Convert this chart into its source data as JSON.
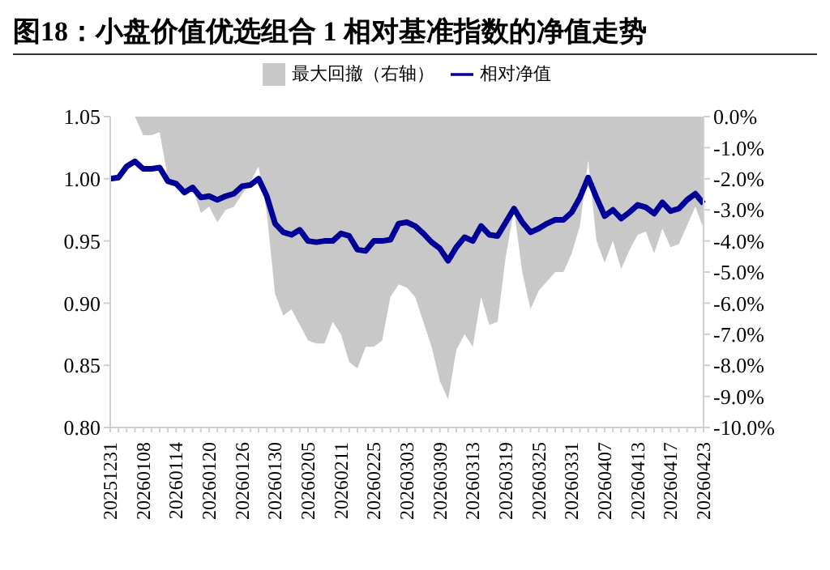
{
  "chart_data": {
    "type": "line",
    "title": "图18：小盘价值优选组合 1 相对基准指数的净值走势",
    "categories": [
      "20251231",
      null,
      null,
      null,
      "20260108",
      null,
      null,
      null,
      "20260114",
      null,
      null,
      null,
      "20260120",
      null,
      null,
      null,
      "20260126",
      null,
      null,
      null,
      "20260130",
      null,
      null,
      null,
      "20260205",
      null,
      null,
      null,
      "20260211",
      null,
      null,
      null,
      "20260225",
      null,
      null,
      null,
      "20260303",
      null,
      null,
      null,
      "20260309",
      null,
      null,
      null,
      "20260313",
      null,
      null,
      null,
      "20260319",
      null,
      null,
      null,
      "20260325",
      null,
      null,
      null,
      "20260331",
      null,
      null,
      null,
      "20260407",
      null,
      null,
      null,
      "20260413",
      null,
      null,
      null,
      "20260417",
      null,
      null,
      null,
      "20260423"
    ],
    "series": [
      {
        "name": "最大回撤（右轴）",
        "type": "area",
        "axis": "y2",
        "color": "#c8c8c8",
        "values": [
          0,
          0,
          0,
          0,
          -0.6,
          -0.6,
          -0.5,
          -2.0,
          -2.1,
          -2.5,
          -2.3,
          -3.1,
          -2.9,
          -3.4,
          -3.0,
          -2.9,
          -2.5,
          -2.1,
          -1.6,
          -3.1,
          -5.7,
          -6.4,
          -6.2,
          -6.7,
          -7.2,
          -7.3,
          -7.3,
          -6.6,
          -7.0,
          -7.9,
          -8.1,
          -7.4,
          -7.4,
          -7.2,
          -5.8,
          -5.4,
          -5.5,
          -5.8,
          -6.6,
          -7.4,
          -8.5,
          -9.1,
          -7.5,
          -7.0,
          -7.4,
          -5.8,
          -6.7,
          -6.6,
          -4.5,
          -3.0,
          -5.0,
          -6.2,
          -5.6,
          -5.3,
          -5.0,
          -5.0,
          -4.4,
          -3.5,
          -1.4,
          -4.0,
          -4.7,
          -4.0,
          -4.9,
          -4.3,
          -3.8,
          -3.7,
          -4.4,
          -3.6,
          -4.2,
          -4.1,
          -3.5,
          -2.9,
          -3.6
        ]
      },
      {
        "name": "相对净值",
        "color": "#000099",
        "values": [
          1.0,
          1.001,
          1.01,
          1.014,
          1.008,
          1.008,
          1.009,
          0.998,
          0.996,
          0.989,
          0.993,
          0.985,
          0.986,
          0.983,
          0.986,
          0.988,
          0.994,
          0.995,
          1.0,
          0.986,
          0.964,
          0.957,
          0.955,
          0.959,
          0.95,
          0.949,
          0.95,
          0.95,
          0.956,
          0.954,
          0.943,
          0.942,
          0.95,
          0.95,
          0.951,
          0.964,
          0.965,
          0.962,
          0.956,
          0.949,
          0.944,
          0.934,
          0.945,
          0.953,
          0.95,
          0.962,
          0.955,
          0.954,
          0.965,
          0.976,
          0.965,
          0.957,
          0.96,
          0.964,
          0.967,
          0.967,
          0.973,
          0.985,
          1.001,
          0.985,
          0.97,
          0.975,
          0.968,
          0.973,
          0.979,
          0.977,
          0.972,
          0.981,
          0.974,
          0.976,
          0.983,
          0.988,
          0.98
        ]
      }
    ],
    "ylim": [
      0.8,
      1.05
    ],
    "yticks": [
      {
        "value": 0.8,
        "label": "0.80"
      },
      {
        "value": 0.85,
        "label": "0.85"
      },
      {
        "value": 0.9,
        "label": "0.90"
      },
      {
        "value": 0.95,
        "label": "0.95"
      },
      {
        "value": 1.0,
        "label": "1.00"
      },
      {
        "value": 1.05,
        "label": "1.05"
      }
    ],
    "y2lim": [
      -10,
      0
    ],
    "y2ticks": [
      {
        "value": 0,
        "label": "0.0%"
      },
      {
        "value": -1,
        "label": "-1.0%"
      },
      {
        "value": -2,
        "label": "-2.0%"
      },
      {
        "value": -3,
        "label": "-3.0%"
      },
      {
        "value": -4,
        "label": "-4.0%"
      },
      {
        "value": -5,
        "label": "-5.0%"
      },
      {
        "value": -6,
        "label": "-6.0%"
      },
      {
        "value": -7,
        "label": "-7.0%"
      },
      {
        "value": -8,
        "label": "-8.0%"
      },
      {
        "value": -9,
        "label": "-9.0%"
      },
      {
        "value": -10,
        "label": "-10.0%"
      }
    ],
    "legend": "top"
  }
}
